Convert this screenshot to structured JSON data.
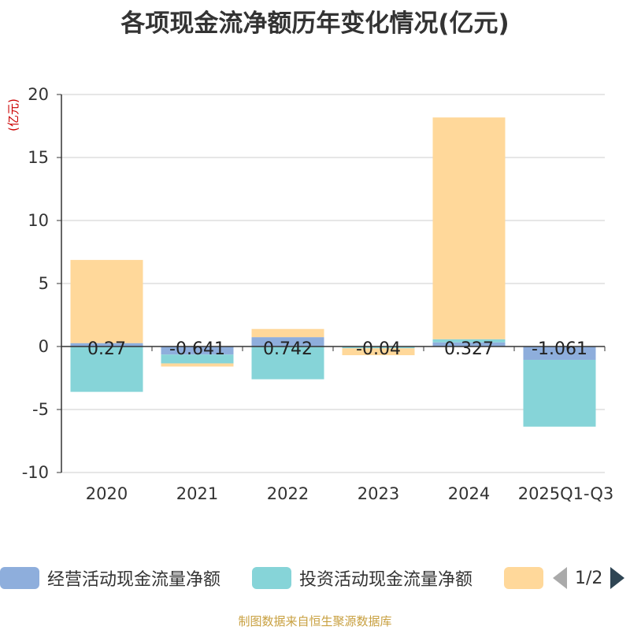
{
  "chart_data": {
    "type": "bar",
    "stacked": true,
    "title": "各项现金流净额历年变化情况(亿元)",
    "ylabel": "(亿元)",
    "xlabel": "",
    "ylim": [
      -10,
      20
    ],
    "yticks": [
      20,
      15,
      10,
      5,
      0,
      -5,
      -10
    ],
    "categories": [
      "2020",
      "2021",
      "2022",
      "2023",
      "2024",
      "2025Q1-Q3"
    ],
    "series": [
      {
        "name": "经营活动现金流量净额",
        "color": "#8eaedc",
        "values": [
          0.27,
          -0.641,
          0.742,
          -0.04,
          0.327,
          -1.061
        ]
      },
      {
        "name": "投资活动现金流量净额",
        "color": "#86d4d8",
        "values": [
          -3.6,
          -0.7,
          -2.6,
          -0.1,
          0.25,
          -5.3
        ]
      },
      {
        "name": "",
        "color": "#ffd89a",
        "values": [
          6.6,
          -0.25,
          0.65,
          -0.55,
          17.6,
          0.0
        ]
      }
    ],
    "data_labels": [
      "0.27",
      "-0.641",
      "0.742",
      "-0.04",
      "0.327",
      "-1.061"
    ],
    "legend_position": "bottom"
  },
  "legend": {
    "page_text": "1/2"
  },
  "source": "制图数据来自恒生聚源数据库"
}
